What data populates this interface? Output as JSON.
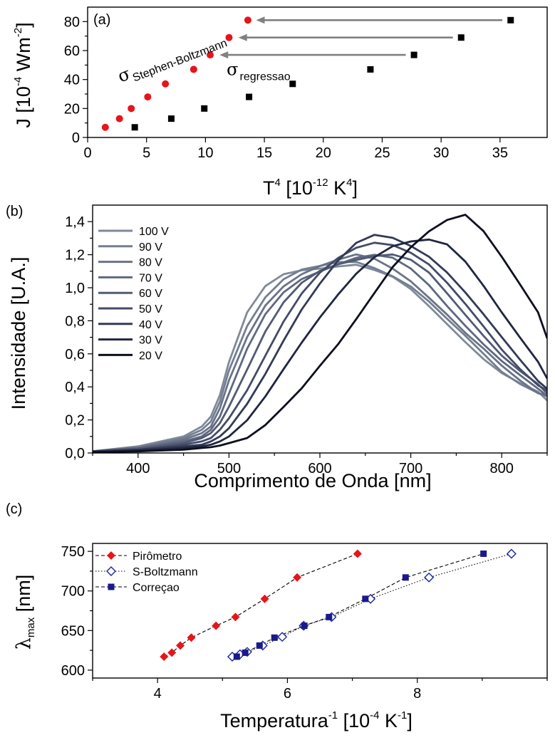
{
  "chart_data": [
    {
      "panel": "(a)",
      "type": "scatter",
      "xlabel": {
        "main": "T",
        "sup": "4",
        "rest": " [10",
        "rest_sup": "-12",
        "rest2": " K",
        "rest2_sup": "4",
        "end": "]"
      },
      "ylabel": {
        "main": "J [10",
        "sup": "-4",
        "rest": " Wm",
        "rest_sup": "-2",
        "end": "]"
      },
      "xlim": [
        0,
        39
      ],
      "ylim": [
        0,
        90
      ],
      "xticks": [
        0,
        5,
        10,
        15,
        20,
        25,
        30,
        35
      ],
      "yticks": [
        0,
        20,
        40,
        60,
        80
      ],
      "series": [
        {
          "name": "Stephen-Boltzmann",
          "marker": "circle",
          "color": "#e8141b",
          "x": [
            1.5,
            2.7,
            3.7,
            5.1,
            6.6,
            9.0,
            10.4,
            12.0,
            13.6
          ],
          "y": [
            7,
            13,
            20,
            28,
            37,
            47,
            57,
            69,
            81
          ]
        },
        {
          "name": "regressao",
          "marker": "square",
          "color": "#000000",
          "x": [
            4.0,
            7.1,
            9.9,
            13.7,
            17.4,
            24.0,
            27.7,
            31.7,
            35.9
          ],
          "y": [
            7,
            13,
            20,
            28,
            37,
            47,
            57,
            69,
            81
          ]
        }
      ],
      "annotations": [
        {
          "sigma": "σ",
          "label": "Stephen-Boltzmann",
          "x": 2.8,
          "y": 38,
          "rotate": -21
        },
        {
          "sigma": "σ",
          "label": "regressao",
          "x": 11.8,
          "y": 43,
          "rotate": 0
        }
      ],
      "arrows": [
        {
          "from": [
            35.2,
            81
          ],
          "to": [
            14.3,
            81
          ]
        },
        {
          "from": [
            31.0,
            69
          ],
          "to": [
            12.8,
            69
          ]
        },
        {
          "from": [
            27.0,
            57
          ],
          "to": [
            11.2,
            57
          ]
        }
      ],
      "arrow_color": "#808080"
    },
    {
      "panel": "(b)",
      "type": "line",
      "xlabel": "Comprimento de Onda [nm]",
      "ylabel": "Intensidade [U.A.]",
      "xlim": [
        350,
        850
      ],
      "ylim": [
        0,
        1.5
      ],
      "xticks": [
        400,
        500,
        600,
        700,
        800
      ],
      "yticks": [
        0.0,
        0.2,
        0.4,
        0.6,
        0.8,
        1.0,
        1.2,
        1.4
      ],
      "ytick_labels": [
        "0,0",
        "0,2",
        "0,4",
        "0,6",
        "0,8",
        "1,0",
        "1,2",
        "1,4"
      ],
      "series": [
        {
          "name": "100 V",
          "color": "#7f8a99",
          "x": [
            350,
            400,
            450,
            470,
            480,
            490,
            500,
            520,
            540,
            560,
            580,
            600,
            620,
            640,
            660,
            680,
            700,
            720,
            740,
            760,
            780,
            800,
            820,
            840,
            850
          ],
          "y": [
            0.01,
            0.04,
            0.1,
            0.16,
            0.22,
            0.35,
            0.55,
            0.85,
            1.0,
            1.07,
            1.1,
            1.12,
            1.14,
            1.15,
            1.11,
            1.06,
            0.98,
            0.88,
            0.78,
            0.68,
            0.58,
            0.49,
            0.42,
            0.36,
            0.33
          ]
        },
        {
          "name": "90 V",
          "color": "#747e91",
          "x": [
            350,
            400,
            450,
            470,
            480,
            490,
            500,
            520,
            540,
            560,
            580,
            600,
            620,
            640,
            660,
            680,
            700,
            720,
            740,
            760,
            780,
            800,
            820,
            840,
            850
          ],
          "y": [
            0.01,
            0.035,
            0.09,
            0.14,
            0.19,
            0.31,
            0.5,
            0.78,
            0.95,
            1.05,
            1.1,
            1.12,
            1.15,
            1.16,
            1.13,
            1.08,
            1.01,
            0.91,
            0.8,
            0.7,
            0.6,
            0.5,
            0.43,
            0.37,
            0.34
          ]
        },
        {
          "name": "80 V",
          "color": "#6a7388",
          "x": [
            350,
            400,
            450,
            470,
            480,
            490,
            500,
            520,
            540,
            560,
            580,
            600,
            620,
            640,
            660,
            680,
            700,
            720,
            740,
            760,
            780,
            800,
            820,
            840,
            850
          ],
          "y": [
            0.01,
            0.03,
            0.08,
            0.12,
            0.16,
            0.27,
            0.44,
            0.7,
            0.9,
            1.02,
            1.09,
            1.13,
            1.16,
            1.19,
            1.17,
            1.12,
            1.05,
            0.95,
            0.84,
            0.72,
            0.62,
            0.52,
            0.44,
            0.37,
            0.34
          ]
        },
        {
          "name": "70 V",
          "color": "#5f6880",
          "x": [
            350,
            400,
            450,
            470,
            480,
            490,
            500,
            520,
            540,
            560,
            580,
            600,
            620,
            640,
            660,
            680,
            700,
            720,
            740,
            760,
            780,
            800,
            820,
            840,
            850
          ],
          "y": [
            0.01,
            0.03,
            0.07,
            0.1,
            0.14,
            0.22,
            0.36,
            0.62,
            0.83,
            0.97,
            1.06,
            1.11,
            1.15,
            1.18,
            1.19,
            1.17,
            1.11,
            1.02,
            0.9,
            0.78,
            0.66,
            0.55,
            0.46,
            0.38,
            0.35
          ]
        },
        {
          "name": "60 V",
          "color": "#525a74",
          "x": [
            350,
            400,
            450,
            470,
            480,
            490,
            500,
            520,
            540,
            560,
            580,
            600,
            620,
            640,
            660,
            680,
            700,
            720,
            740,
            760,
            780,
            800,
            820,
            840,
            850
          ],
          "y": [
            0.01,
            0.025,
            0.06,
            0.09,
            0.12,
            0.18,
            0.28,
            0.51,
            0.73,
            0.9,
            1.02,
            1.1,
            1.15,
            1.18,
            1.2,
            1.2,
            1.16,
            1.08,
            0.96,
            0.84,
            0.72,
            0.6,
            0.5,
            0.41,
            0.37
          ]
        },
        {
          "name": "50 V",
          "color": "#434b67",
          "x": [
            350,
            400,
            450,
            470,
            480,
            490,
            500,
            520,
            540,
            560,
            580,
            600,
            620,
            640,
            660,
            680,
            700,
            720,
            740,
            760,
            780,
            800,
            820,
            840,
            850
          ],
          "y": [
            0.01,
            0.02,
            0.05,
            0.07,
            0.09,
            0.14,
            0.21,
            0.39,
            0.6,
            0.8,
            0.96,
            1.08,
            1.17,
            1.24,
            1.28,
            1.27,
            1.22,
            1.14,
            1.02,
            0.89,
            0.76,
            0.63,
            0.52,
            0.42,
            0.37
          ]
        },
        {
          "name": "40 V",
          "color": "#323a55",
          "x": [
            350,
            400,
            450,
            470,
            480,
            490,
            500,
            520,
            540,
            560,
            580,
            600,
            620,
            640,
            660,
            680,
            700,
            720,
            740,
            760,
            780,
            800,
            820,
            840,
            850
          ],
          "y": [
            0.01,
            0.02,
            0.04,
            0.05,
            0.07,
            0.1,
            0.15,
            0.29,
            0.48,
            0.69,
            0.88,
            1.03,
            1.16,
            1.26,
            1.31,
            1.3,
            1.26,
            1.2,
            1.1,
            0.97,
            0.83,
            0.69,
            0.56,
            0.44,
            0.38
          ]
        },
        {
          "name": "30 V",
          "color": "#202640",
          "x": [
            350,
            400,
            450,
            470,
            480,
            490,
            500,
            520,
            540,
            560,
            580,
            600,
            620,
            640,
            660,
            680,
            700,
            720,
            740,
            760,
            780,
            800,
            820,
            840,
            850
          ],
          "y": [
            0.005,
            0.015,
            0.03,
            0.04,
            0.05,
            0.07,
            0.1,
            0.19,
            0.33,
            0.5,
            0.67,
            0.83,
            0.97,
            1.09,
            1.18,
            1.24,
            1.27,
            1.29,
            1.27,
            1.17,
            1.02,
            0.85,
            0.69,
            0.54,
            0.46
          ]
        },
        {
          "name": "20 V",
          "color": "#0d0f1e",
          "x": [
            350,
            400,
            450,
            470,
            480,
            490,
            500,
            520,
            540,
            560,
            580,
            600,
            620,
            640,
            660,
            680,
            700,
            720,
            740,
            760,
            780,
            800,
            820,
            840,
            850
          ],
          "y": [
            0.005,
            0.01,
            0.02,
            0.03,
            0.035,
            0.045,
            0.06,
            0.1,
            0.17,
            0.27,
            0.38,
            0.52,
            0.66,
            0.82,
            0.98,
            1.13,
            1.24,
            1.33,
            1.4,
            1.44,
            1.35,
            1.2,
            1.03,
            0.85,
            0.7
          ]
        }
      ]
    },
    {
      "panel": "(c)",
      "type": "line",
      "xlabel": {
        "main": "Temperatura",
        "sup": "-1",
        "rest": " [10",
        "rest_sup": "-4",
        "rest2": " K",
        "rest2_sup": "-1",
        "end": "]"
      },
      "ylabel": {
        "main": "λ",
        "sub": "max",
        "rest": " [nm]"
      },
      "xlim": [
        3,
        10
      ],
      "ylim": [
        590,
        760
      ],
      "xticks": [
        4,
        6,
        8
      ],
      "xticks_minor": [
        3,
        5,
        7,
        9,
        10
      ],
      "yticks": [
        600,
        650,
        700,
        750
      ],
      "series": [
        {
          "name": "Pirômetro",
          "marker": "diamond-filled",
          "color": "#e8141b",
          "line_style": "dashed",
          "x": [
            4.1,
            4.22,
            4.35,
            4.52,
            4.9,
            5.2,
            5.65,
            6.15,
            7.08
          ],
          "y": [
            617,
            622,
            631,
            641,
            656,
            667,
            690,
            717,
            747
          ]
        },
        {
          "name": "S-Boltzmann",
          "marker": "diamond-open",
          "color": "#1a22a0",
          "line_style": "dotted",
          "x": [
            5.15,
            5.27,
            5.38,
            5.62,
            5.92,
            6.25,
            6.68,
            7.28,
            8.18,
            9.45
          ],
          "y": [
            617,
            620,
            623,
            631,
            642,
            656,
            667,
            690,
            717,
            747
          ]
        },
        {
          "name": "Correçao",
          "marker": "square-filled",
          "color": "#1a1a8c",
          "line_style": "dashed",
          "x": [
            5.22,
            5.35,
            5.57,
            5.8,
            6.26,
            6.64,
            7.2,
            7.82,
            9.02
          ],
          "y": [
            617,
            622,
            631,
            641,
            656,
            667,
            690,
            717,
            747
          ]
        }
      ]
    }
  ]
}
